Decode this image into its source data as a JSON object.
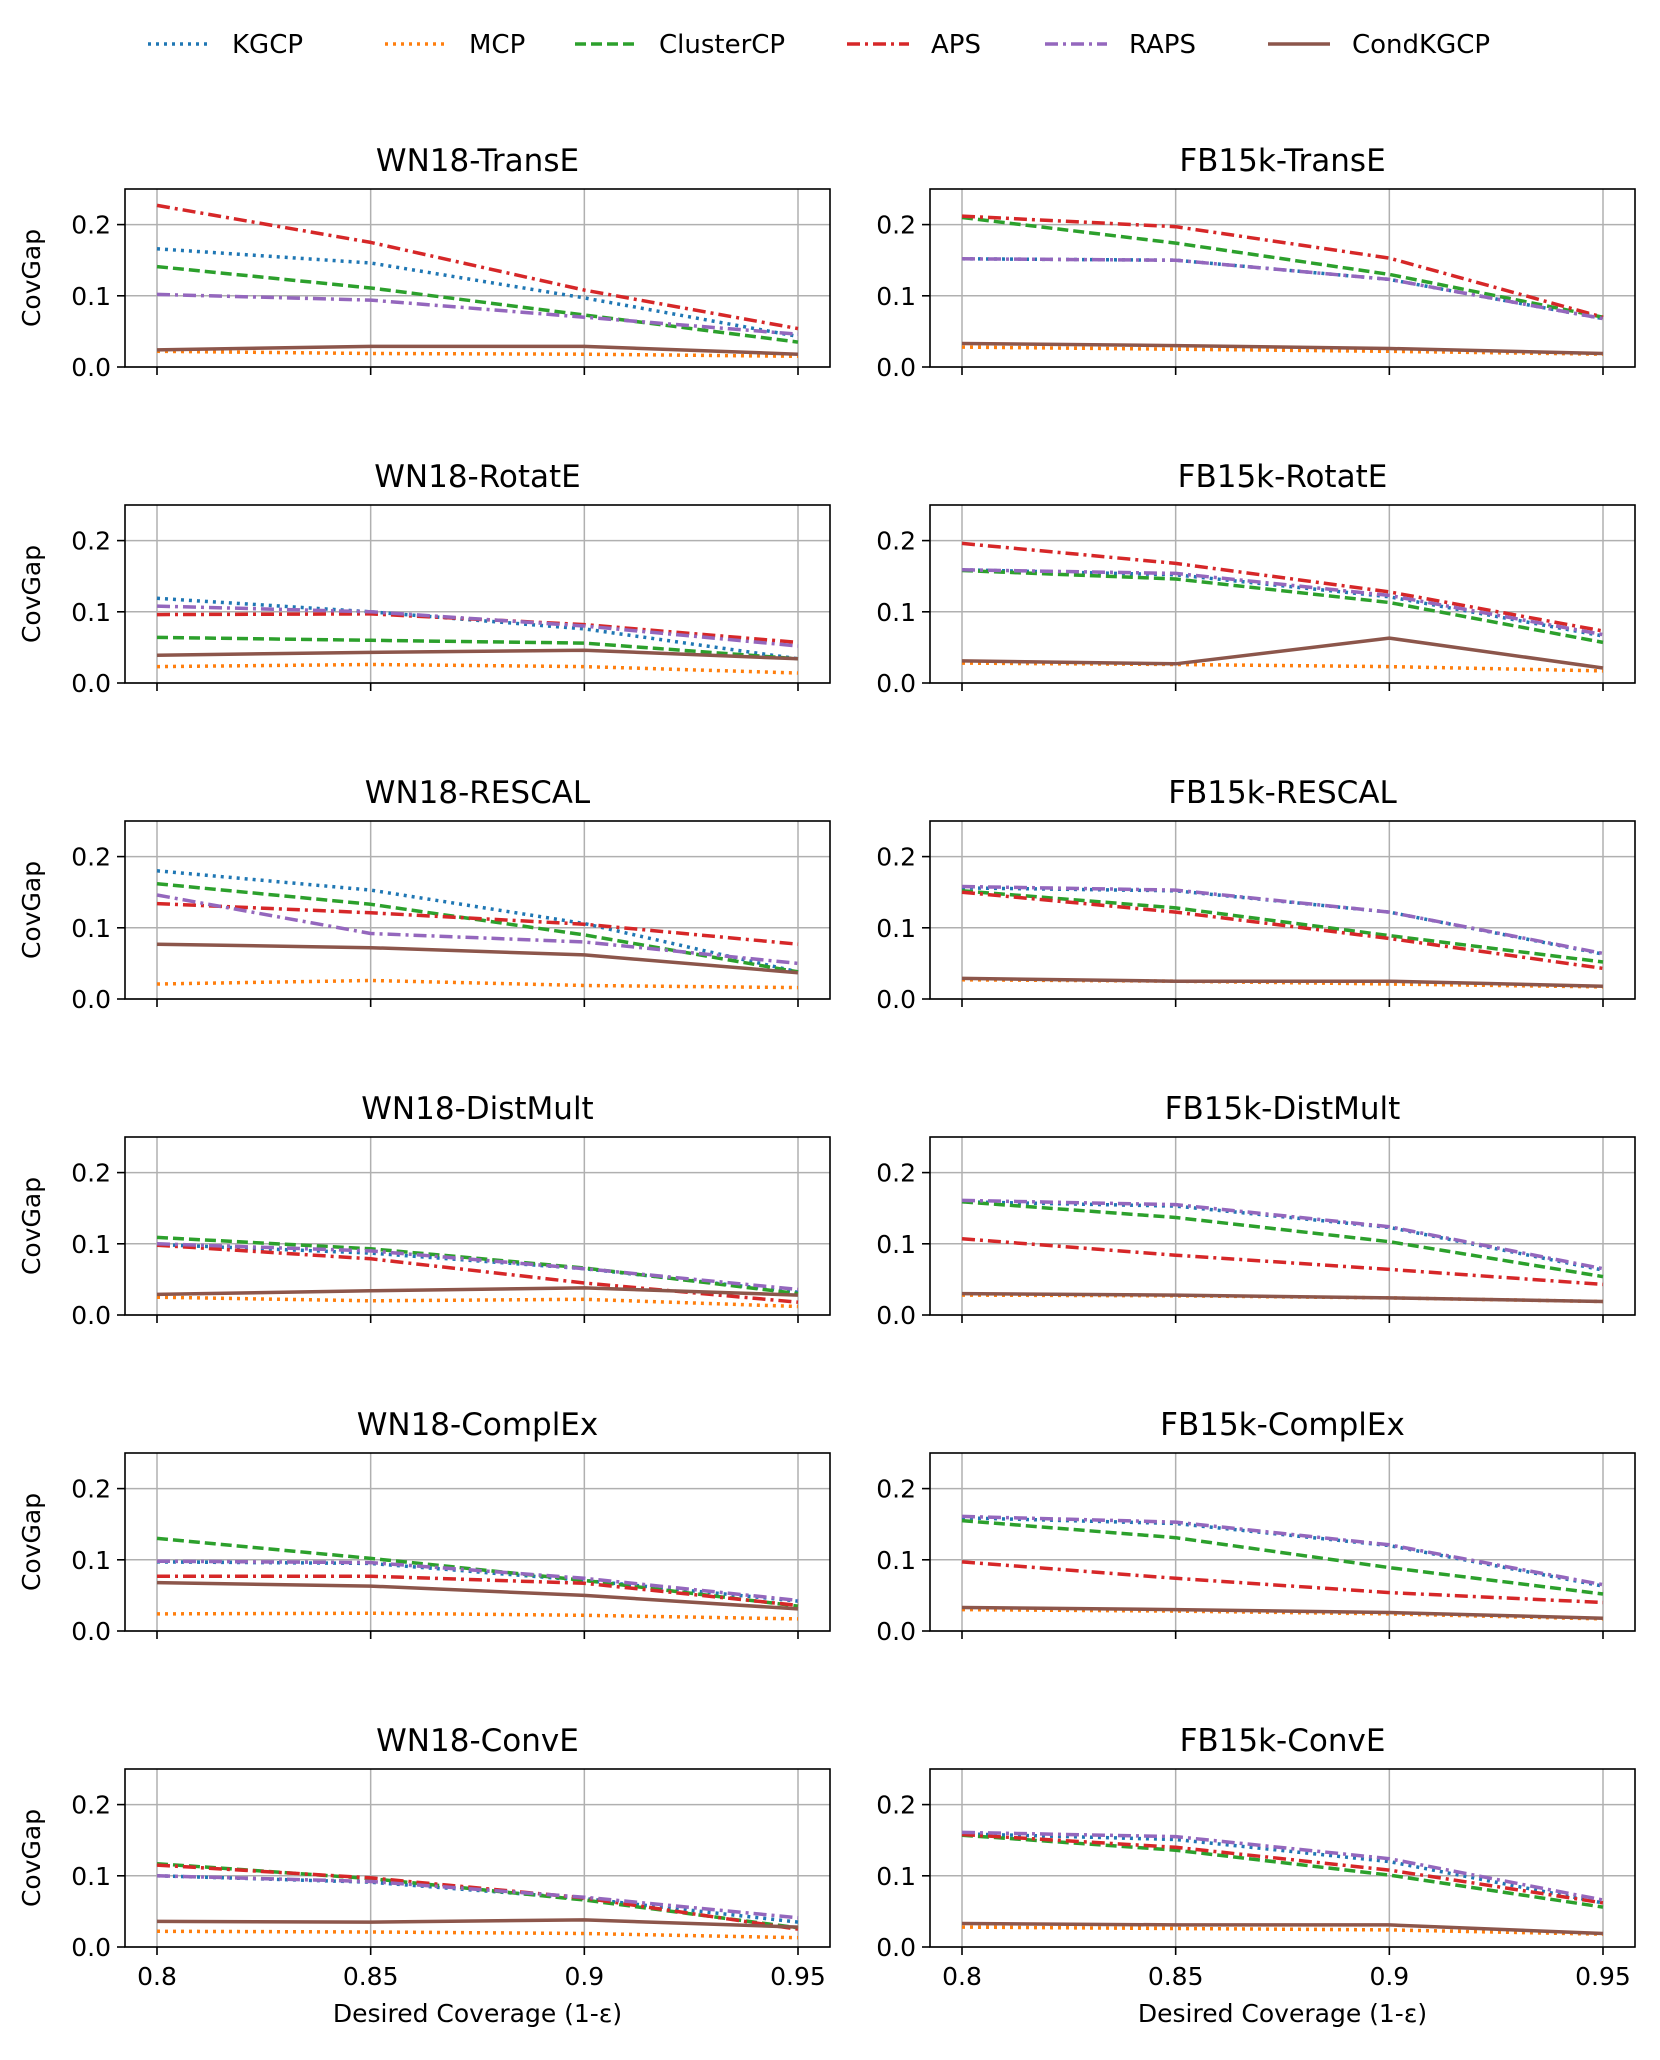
{
  "legend": {
    "entries": [
      {
        "name": "KGCP",
        "color": "#1f77b4",
        "dash": "dot"
      },
      {
        "name": "MCP",
        "color": "#ff7f0e",
        "dash": "dot"
      },
      {
        "name": "ClusterCP",
        "color": "#2ca02c",
        "dash": "dash"
      },
      {
        "name": "APS",
        "color": "#d62728",
        "dash": "dashdot"
      },
      {
        "name": "RAPS",
        "color": "#9467bd",
        "dash": "dashdot"
      },
      {
        "name": "CondKGCP",
        "color": "#8c564b",
        "dash": "solid"
      }
    ]
  },
  "chart_data": [
    {
      "type": "line",
      "title": "WN18-TransE",
      "ylabel": "CovGap",
      "xlabel": "",
      "x": [
        0.8,
        0.85,
        0.9,
        0.95
      ],
      "ylim": [
        0,
        0.25
      ],
      "xticks": [
        "0.8",
        "0.85",
        "0.9",
        "0.95"
      ],
      "yticks": [
        "0.0",
        "0.1",
        "0.2"
      ],
      "grid": true,
      "series": [
        {
          "name": "KGCP",
          "values": [
            0.166,
            0.146,
            0.097,
            0.043
          ]
        },
        {
          "name": "MCP",
          "values": [
            0.022,
            0.019,
            0.018,
            0.015
          ]
        },
        {
          "name": "ClusterCP",
          "values": [
            0.141,
            0.111,
            0.073,
            0.035
          ]
        },
        {
          "name": "APS",
          "values": [
            0.227,
            0.175,
            0.108,
            0.054
          ]
        },
        {
          "name": "RAPS",
          "values": [
            0.102,
            0.094,
            0.07,
            0.046
          ]
        },
        {
          "name": "CondKGCP",
          "values": [
            0.024,
            0.029,
            0.029,
            0.018
          ]
        }
      ]
    },
    {
      "type": "line",
      "title": "FB15k-TransE",
      "ylabel": "",
      "xlabel": "",
      "x": [
        0.8,
        0.85,
        0.9,
        0.95
      ],
      "ylim": [
        0,
        0.25
      ],
      "xticks": [
        "0.8",
        "0.85",
        "0.9",
        "0.95"
      ],
      "yticks": [
        "0.0",
        "0.1",
        "0.2"
      ],
      "grid": true,
      "series": [
        {
          "name": "KGCP",
          "values": [
            0.152,
            0.15,
            0.123,
            0.068
          ]
        },
        {
          "name": "MCP",
          "values": [
            0.028,
            0.025,
            0.022,
            0.018
          ]
        },
        {
          "name": "ClusterCP",
          "values": [
            0.21,
            0.174,
            0.13,
            0.07
          ]
        },
        {
          "name": "APS",
          "values": [
            0.212,
            0.197,
            0.153,
            0.07
          ]
        },
        {
          "name": "RAPS",
          "values": [
            0.152,
            0.15,
            0.123,
            0.068
          ]
        },
        {
          "name": "CondKGCP",
          "values": [
            0.033,
            0.03,
            0.026,
            0.019
          ]
        }
      ]
    },
    {
      "type": "line",
      "title": "WN18-RotatE",
      "ylabel": "CovGap",
      "xlabel": "",
      "x": [
        0.8,
        0.85,
        0.9,
        0.95
      ],
      "ylim": [
        0,
        0.25
      ],
      "xticks": [
        "0.8",
        "0.85",
        "0.9",
        "0.95"
      ],
      "yticks": [
        "0.0",
        "0.1",
        "0.2"
      ],
      "grid": true,
      "series": [
        {
          "name": "KGCP",
          "values": [
            0.119,
            0.1,
            0.076,
            0.034
          ]
        },
        {
          "name": "MCP",
          "values": [
            0.023,
            0.026,
            0.023,
            0.014
          ]
        },
        {
          "name": "ClusterCP",
          "values": [
            0.064,
            0.06,
            0.056,
            0.034
          ]
        },
        {
          "name": "APS",
          "values": [
            0.096,
            0.097,
            0.082,
            0.057
          ]
        },
        {
          "name": "RAPS",
          "values": [
            0.108,
            0.1,
            0.08,
            0.052
          ]
        },
        {
          "name": "CondKGCP",
          "values": [
            0.039,
            0.043,
            0.046,
            0.034
          ]
        }
      ]
    },
    {
      "type": "line",
      "title": "FB15k-RotatE",
      "ylabel": "",
      "xlabel": "",
      "x": [
        0.8,
        0.85,
        0.9,
        0.95
      ],
      "ylim": [
        0,
        0.25
      ],
      "xticks": [
        "0.8",
        "0.85",
        "0.9",
        "0.95"
      ],
      "yticks": [
        "0.0",
        "0.1",
        "0.2"
      ],
      "grid": true,
      "series": [
        {
          "name": "KGCP",
          "values": [
            0.159,
            0.152,
            0.121,
            0.066
          ]
        },
        {
          "name": "MCP",
          "values": [
            0.028,
            0.026,
            0.023,
            0.017
          ]
        },
        {
          "name": "ClusterCP",
          "values": [
            0.158,
            0.146,
            0.113,
            0.057
          ]
        },
        {
          "name": "APS",
          "values": [
            0.196,
            0.168,
            0.128,
            0.073
          ]
        },
        {
          "name": "RAPS",
          "values": [
            0.159,
            0.154,
            0.123,
            0.068
          ]
        },
        {
          "name": "CondKGCP",
          "values": [
            0.031,
            0.027,
            0.063,
            0.021
          ]
        }
      ]
    },
    {
      "type": "line",
      "title": "WN18-RESCAL",
      "ylabel": "CovGap",
      "xlabel": "",
      "x": [
        0.8,
        0.85,
        0.9,
        0.95
      ],
      "ylim": [
        0,
        0.25
      ],
      "xticks": [
        "0.8",
        "0.85",
        "0.9",
        "0.95"
      ],
      "yticks": [
        "0.0",
        "0.1",
        "0.2"
      ],
      "grid": true,
      "series": [
        {
          "name": "KGCP",
          "values": [
            0.18,
            0.153,
            0.106,
            0.038
          ]
        },
        {
          "name": "MCP",
          "values": [
            0.021,
            0.026,
            0.019,
            0.016
          ]
        },
        {
          "name": "ClusterCP",
          "values": [
            0.162,
            0.133,
            0.09,
            0.038
          ]
        },
        {
          "name": "APS",
          "values": [
            0.134,
            0.121,
            0.105,
            0.077
          ]
        },
        {
          "name": "RAPS",
          "values": [
            0.146,
            0.092,
            0.08,
            0.05
          ]
        },
        {
          "name": "CondKGCP",
          "values": [
            0.077,
            0.072,
            0.062,
            0.037
          ]
        }
      ]
    },
    {
      "type": "line",
      "title": "FB15k-RESCAL",
      "ylabel": "",
      "xlabel": "",
      "x": [
        0.8,
        0.85,
        0.9,
        0.95
      ],
      "ylim": [
        0,
        0.25
      ],
      "xticks": [
        "0.8",
        "0.85",
        "0.9",
        "0.95"
      ],
      "yticks": [
        "0.0",
        "0.1",
        "0.2"
      ],
      "grid": true,
      "series": [
        {
          "name": "KGCP",
          "values": [
            0.156,
            0.152,
            0.122,
            0.063
          ]
        },
        {
          "name": "MCP",
          "values": [
            0.027,
            0.025,
            0.021,
            0.017
          ]
        },
        {
          "name": "ClusterCP",
          "values": [
            0.152,
            0.128,
            0.089,
            0.052
          ]
        },
        {
          "name": "APS",
          "values": [
            0.15,
            0.122,
            0.085,
            0.043
          ]
        },
        {
          "name": "RAPS",
          "values": [
            0.158,
            0.153,
            0.122,
            0.064
          ]
        },
        {
          "name": "CondKGCP",
          "values": [
            0.029,
            0.025,
            0.025,
            0.018
          ]
        }
      ]
    },
    {
      "type": "line",
      "title": "WN18-DistMult",
      "ylabel": "CovGap",
      "xlabel": "",
      "x": [
        0.8,
        0.85,
        0.9,
        0.95
      ],
      "ylim": [
        0,
        0.25
      ],
      "xticks": [
        "0.8",
        "0.85",
        "0.9",
        "0.95"
      ],
      "yticks": [
        "0.0",
        "0.1",
        "0.2"
      ],
      "grid": true,
      "series": [
        {
          "name": "KGCP",
          "values": [
            0.099,
            0.087,
            0.065,
            0.032
          ]
        },
        {
          "name": "MCP",
          "values": [
            0.025,
            0.02,
            0.022,
            0.012
          ]
        },
        {
          "name": "ClusterCP",
          "values": [
            0.109,
            0.093,
            0.066,
            0.03
          ]
        },
        {
          "name": "APS",
          "values": [
            0.098,
            0.079,
            0.045,
            0.018
          ]
        },
        {
          "name": "RAPS",
          "values": [
            0.1,
            0.09,
            0.065,
            0.036
          ]
        },
        {
          "name": "CondKGCP",
          "values": [
            0.029,
            0.034,
            0.038,
            0.028
          ]
        }
      ]
    },
    {
      "type": "line",
      "title": "FB15k-DistMult",
      "ylabel": "",
      "xlabel": "",
      "x": [
        0.8,
        0.85,
        0.9,
        0.95
      ],
      "ylim": [
        0,
        0.25
      ],
      "xticks": [
        "0.8",
        "0.85",
        "0.9",
        "0.95"
      ],
      "yticks": [
        "0.0",
        "0.1",
        "0.2"
      ],
      "grid": true,
      "series": [
        {
          "name": "KGCP",
          "values": [
            0.159,
            0.153,
            0.123,
            0.063
          ]
        },
        {
          "name": "MCP",
          "values": [
            0.028,
            0.027,
            0.024,
            0.019
          ]
        },
        {
          "name": "ClusterCP",
          "values": [
            0.159,
            0.137,
            0.103,
            0.054
          ]
        },
        {
          "name": "APS",
          "values": [
            0.107,
            0.084,
            0.064,
            0.043
          ]
        },
        {
          "name": "RAPS",
          "values": [
            0.161,
            0.155,
            0.124,
            0.065
          ]
        },
        {
          "name": "CondKGCP",
          "values": [
            0.03,
            0.028,
            0.024,
            0.019
          ]
        }
      ]
    },
    {
      "type": "line",
      "title": "WN18-ComplEx",
      "ylabel": "CovGap",
      "xlabel": "",
      "x": [
        0.8,
        0.85,
        0.9,
        0.95
      ],
      "ylim": [
        0,
        0.25
      ],
      "xticks": [
        "0.8",
        "0.85",
        "0.9",
        "0.95"
      ],
      "yticks": [
        "0.0",
        "0.1",
        "0.2"
      ],
      "grid": true,
      "series": [
        {
          "name": "KGCP",
          "values": [
            0.097,
            0.095,
            0.071,
            0.042
          ]
        },
        {
          "name": "MCP",
          "values": [
            0.024,
            0.025,
            0.022,
            0.017
          ]
        },
        {
          "name": "ClusterCP",
          "values": [
            0.13,
            0.102,
            0.071,
            0.035
          ]
        },
        {
          "name": "APS",
          "values": [
            0.077,
            0.077,
            0.067,
            0.036
          ]
        },
        {
          "name": "RAPS",
          "values": [
            0.098,
            0.096,
            0.074,
            0.043
          ]
        },
        {
          "name": "CondKGCP",
          "values": [
            0.068,
            0.063,
            0.05,
            0.031
          ]
        }
      ]
    },
    {
      "type": "line",
      "title": "FB15k-ComplEx",
      "ylabel": "",
      "xlabel": "",
      "x": [
        0.8,
        0.85,
        0.9,
        0.95
      ],
      "ylim": [
        0,
        0.25
      ],
      "xticks": [
        "0.8",
        "0.85",
        "0.9",
        "0.95"
      ],
      "yticks": [
        "0.0",
        "0.1",
        "0.2"
      ],
      "grid": true,
      "series": [
        {
          "name": "KGCP",
          "values": [
            0.159,
            0.151,
            0.12,
            0.063
          ]
        },
        {
          "name": "MCP",
          "values": [
            0.03,
            0.028,
            0.024,
            0.017
          ]
        },
        {
          "name": "ClusterCP",
          "values": [
            0.155,
            0.131,
            0.089,
            0.052
          ]
        },
        {
          "name": "APS",
          "values": [
            0.097,
            0.074,
            0.054,
            0.04
          ]
        },
        {
          "name": "RAPS",
          "values": [
            0.161,
            0.153,
            0.121,
            0.065
          ]
        },
        {
          "name": "CondKGCP",
          "values": [
            0.033,
            0.03,
            0.026,
            0.018
          ]
        }
      ]
    },
    {
      "type": "line",
      "title": "WN18-ConvE",
      "ylabel": "CovGap",
      "xlabel": "Desired Coverage (1-ε)",
      "x": [
        0.8,
        0.85,
        0.9,
        0.95
      ],
      "ylim": [
        0,
        0.25
      ],
      "xticks": [
        "0.8",
        "0.85",
        "0.9",
        "0.95"
      ],
      "yticks": [
        "0.0",
        "0.1",
        "0.2"
      ],
      "grid": true,
      "series": [
        {
          "name": "KGCP",
          "values": [
            0.1,
            0.091,
            0.068,
            0.035
          ]
        },
        {
          "name": "MCP",
          "values": [
            0.022,
            0.021,
            0.019,
            0.013
          ]
        },
        {
          "name": "ClusterCP",
          "values": [
            0.117,
            0.096,
            0.066,
            0.027
          ]
        },
        {
          "name": "APS",
          "values": [
            0.115,
            0.097,
            0.069,
            0.025
          ]
        },
        {
          "name": "RAPS",
          "values": [
            0.1,
            0.092,
            0.07,
            0.041
          ]
        },
        {
          "name": "CondKGCP",
          "values": [
            0.036,
            0.035,
            0.038,
            0.028
          ]
        }
      ]
    },
    {
      "type": "line",
      "title": "FB15k-ConvE",
      "ylabel": "",
      "xlabel": "Desired Coverage (1-ε)",
      "x": [
        0.8,
        0.85,
        0.9,
        0.95
      ],
      "ylim": [
        0,
        0.25
      ],
      "xticks": [
        "0.8",
        "0.85",
        "0.9",
        "0.95"
      ],
      "yticks": [
        "0.0",
        "0.1",
        "0.2"
      ],
      "grid": true,
      "series": [
        {
          "name": "KGCP",
          "values": [
            0.159,
            0.151,
            0.12,
            0.062
          ]
        },
        {
          "name": "MCP",
          "values": [
            0.028,
            0.026,
            0.024,
            0.018
          ]
        },
        {
          "name": "ClusterCP",
          "values": [
            0.157,
            0.136,
            0.101,
            0.056
          ]
        },
        {
          "name": "APS",
          "values": [
            0.158,
            0.14,
            0.108,
            0.062
          ]
        },
        {
          "name": "RAPS",
          "values": [
            0.161,
            0.155,
            0.124,
            0.066
          ]
        },
        {
          "name": "CondKGCP",
          "values": [
            0.033,
            0.031,
            0.031,
            0.019
          ]
        }
      ]
    }
  ]
}
